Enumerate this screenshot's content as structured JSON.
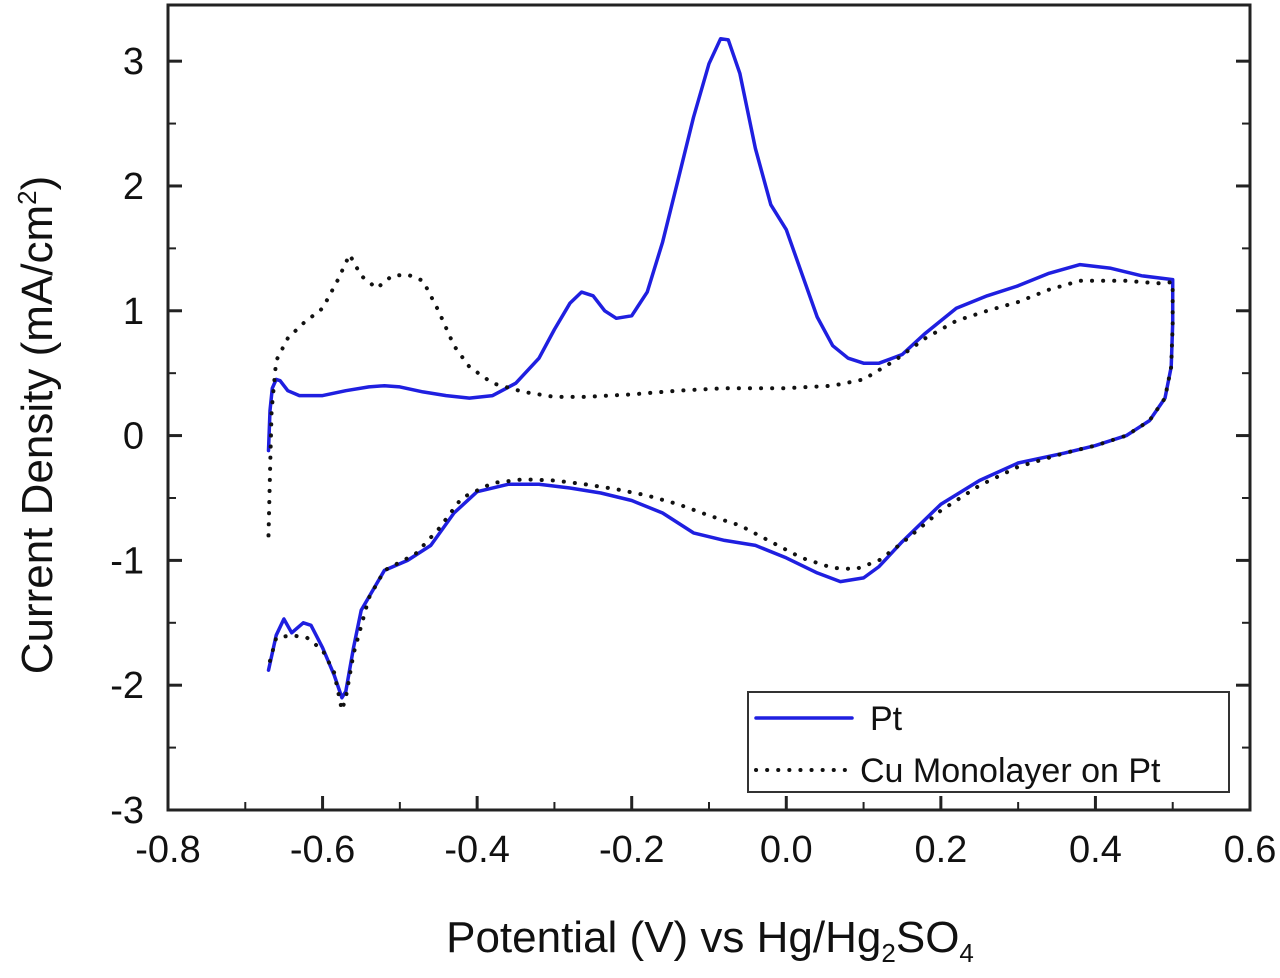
{
  "chart_data": {
    "type": "line",
    "xlabel_parts": {
      "main": "Potential (V) vs Hg/Hg",
      "sub1": "2",
      "mid": "SO",
      "sub2": "4"
    },
    "ylabel_parts": {
      "main": "Current Density (mA/cm",
      "sup": "2",
      "end": ")"
    },
    "xlim": [
      -0.8,
      0.6
    ],
    "ylim": [
      -3,
      3.45
    ],
    "xticks": [
      -0.8,
      -0.6,
      -0.4,
      -0.2,
      0.0,
      0.2,
      0.4,
      0.6
    ],
    "xtick_labels": [
      "-0.8",
      "-0.6",
      "-0.4",
      "-0.2",
      "0.0",
      "0.2",
      "0.4",
      "0.6"
    ],
    "yticks": [
      -3,
      -2,
      -1,
      0,
      1,
      2,
      3
    ],
    "ytick_labels": [
      "-3",
      "-2",
      "-1",
      "0",
      "1",
      "2",
      "3"
    ],
    "grid": false,
    "legend_position": "bottom-right",
    "series": [
      {
        "name": "Pt",
        "color": "#1f1fe0",
        "style": "solid",
        "points": [
          [
            -0.67,
            -0.12
          ],
          [
            -0.668,
            0.2
          ],
          [
            -0.665,
            0.38
          ],
          [
            -0.66,
            0.45
          ],
          [
            -0.655,
            0.44
          ],
          [
            -0.645,
            0.36
          ],
          [
            -0.63,
            0.32
          ],
          [
            -0.6,
            0.32
          ],
          [
            -0.57,
            0.36
          ],
          [
            -0.54,
            0.39
          ],
          [
            -0.52,
            0.4
          ],
          [
            -0.5,
            0.39
          ],
          [
            -0.47,
            0.35
          ],
          [
            -0.44,
            0.32
          ],
          [
            -0.41,
            0.3
          ],
          [
            -0.38,
            0.32
          ],
          [
            -0.35,
            0.42
          ],
          [
            -0.32,
            0.62
          ],
          [
            -0.3,
            0.85
          ],
          [
            -0.28,
            1.06
          ],
          [
            -0.265,
            1.15
          ],
          [
            -0.25,
            1.12
          ],
          [
            -0.235,
            1.0
          ],
          [
            -0.22,
            0.94
          ],
          [
            -0.2,
            0.96
          ],
          [
            -0.18,
            1.15
          ],
          [
            -0.16,
            1.55
          ],
          [
            -0.14,
            2.05
          ],
          [
            -0.12,
            2.55
          ],
          [
            -0.1,
            2.98
          ],
          [
            -0.085,
            3.18
          ],
          [
            -0.075,
            3.17
          ],
          [
            -0.06,
            2.9
          ],
          [
            -0.04,
            2.3
          ],
          [
            -0.02,
            1.85
          ],
          [
            0.0,
            1.65
          ],
          [
            0.02,
            1.3
          ],
          [
            0.04,
            0.95
          ],
          [
            0.06,
            0.72
          ],
          [
            0.08,
            0.62
          ],
          [
            0.1,
            0.58
          ],
          [
            0.12,
            0.58
          ],
          [
            0.15,
            0.65
          ],
          [
            0.18,
            0.82
          ],
          [
            0.22,
            1.02
          ],
          [
            0.26,
            1.12
          ],
          [
            0.3,
            1.2
          ],
          [
            0.34,
            1.3
          ],
          [
            0.38,
            1.37
          ],
          [
            0.42,
            1.34
          ],
          [
            0.46,
            1.28
          ],
          [
            0.5,
            1.25
          ],
          [
            0.5,
            0.9
          ],
          [
            0.498,
            0.55
          ],
          [
            0.49,
            0.3
          ],
          [
            0.47,
            0.12
          ],
          [
            0.44,
            0.0
          ],
          [
            0.4,
            -0.08
          ],
          [
            0.36,
            -0.14
          ],
          [
            0.3,
            -0.22
          ],
          [
            0.25,
            -0.36
          ],
          [
            0.2,
            -0.55
          ],
          [
            0.15,
            -0.85
          ],
          [
            0.12,
            -1.05
          ],
          [
            0.1,
            -1.14
          ],
          [
            0.07,
            -1.17
          ],
          [
            0.04,
            -1.1
          ],
          [
            0.0,
            -0.98
          ],
          [
            -0.04,
            -0.88
          ],
          [
            -0.08,
            -0.84
          ],
          [
            -0.12,
            -0.78
          ],
          [
            -0.16,
            -0.62
          ],
          [
            -0.2,
            -0.52
          ],
          [
            -0.24,
            -0.46
          ],
          [
            -0.28,
            -0.42
          ],
          [
            -0.32,
            -0.39
          ],
          [
            -0.36,
            -0.39
          ],
          [
            -0.4,
            -0.45
          ],
          [
            -0.43,
            -0.62
          ],
          [
            -0.46,
            -0.88
          ],
          [
            -0.49,
            -1.0
          ],
          [
            -0.52,
            -1.08
          ],
          [
            -0.55,
            -1.4
          ],
          [
            -0.56,
            -1.7
          ],
          [
            -0.57,
            -2.05
          ],
          [
            -0.575,
            -2.1
          ],
          [
            -0.585,
            -1.92
          ],
          [
            -0.6,
            -1.7
          ],
          [
            -0.615,
            -1.52
          ],
          [
            -0.625,
            -1.5
          ],
          [
            -0.64,
            -1.58
          ],
          [
            -0.65,
            -1.47
          ],
          [
            -0.66,
            -1.6
          ],
          [
            -0.67,
            -1.88
          ]
        ]
      },
      {
        "name": "Cu Monolayer on Pt",
        "color": "#111111",
        "style": "dotted",
        "points": [
          [
            -0.67,
            -0.8
          ],
          [
            -0.668,
            -0.3
          ],
          [
            -0.666,
            0.2
          ],
          [
            -0.66,
            0.6
          ],
          [
            -0.645,
            0.78
          ],
          [
            -0.625,
            0.9
          ],
          [
            -0.6,
            1.02
          ],
          [
            -0.58,
            1.25
          ],
          [
            -0.565,
            1.45
          ],
          [
            -0.55,
            1.28
          ],
          [
            -0.53,
            1.18
          ],
          [
            -0.51,
            1.28
          ],
          [
            -0.49,
            1.29
          ],
          [
            -0.47,
            1.24
          ],
          [
            -0.45,
            1.0
          ],
          [
            -0.43,
            0.72
          ],
          [
            -0.41,
            0.55
          ],
          [
            -0.38,
            0.42
          ],
          [
            -0.34,
            0.35
          ],
          [
            -0.3,
            0.31
          ],
          [
            -0.26,
            0.31
          ],
          [
            -0.2,
            0.33
          ],
          [
            -0.14,
            0.36
          ],
          [
            -0.08,
            0.38
          ],
          [
            0.0,
            0.38
          ],
          [
            0.06,
            0.4
          ],
          [
            0.1,
            0.45
          ],
          [
            0.14,
            0.6
          ],
          [
            0.18,
            0.78
          ],
          [
            0.22,
            0.92
          ],
          [
            0.26,
            1.0
          ],
          [
            0.3,
            1.07
          ],
          [
            0.34,
            1.17
          ],
          [
            0.38,
            1.24
          ],
          [
            0.44,
            1.24
          ],
          [
            0.48,
            1.22
          ],
          [
            0.5,
            1.23
          ],
          [
            0.5,
            0.9
          ],
          [
            0.498,
            0.55
          ],
          [
            0.49,
            0.3
          ],
          [
            0.47,
            0.12
          ],
          [
            0.44,
            0.0
          ],
          [
            0.4,
            -0.08
          ],
          [
            0.36,
            -0.14
          ],
          [
            0.3,
            -0.25
          ],
          [
            0.25,
            -0.4
          ],
          [
            0.2,
            -0.6
          ],
          [
            0.15,
            -0.86
          ],
          [
            0.12,
            -1.0
          ],
          [
            0.09,
            -1.07
          ],
          [
            0.06,
            -1.06
          ],
          [
            0.02,
            -0.98
          ],
          [
            -0.02,
            -0.85
          ],
          [
            -0.06,
            -0.72
          ],
          [
            -0.1,
            -0.64
          ],
          [
            -0.14,
            -0.55
          ],
          [
            -0.18,
            -0.48
          ],
          [
            -0.22,
            -0.43
          ],
          [
            -0.26,
            -0.39
          ],
          [
            -0.3,
            -0.36
          ],
          [
            -0.34,
            -0.35
          ],
          [
            -0.38,
            -0.38
          ],
          [
            -0.42,
            -0.5
          ],
          [
            -0.45,
            -0.75
          ],
          [
            -0.48,
            -0.95
          ],
          [
            -0.52,
            -1.08
          ],
          [
            -0.54,
            -1.3
          ],
          [
            -0.56,
            -1.75
          ],
          [
            -0.57,
            -2.1
          ],
          [
            -0.575,
            -2.2
          ],
          [
            -0.585,
            -1.9
          ],
          [
            -0.6,
            -1.72
          ],
          [
            -0.62,
            -1.62
          ],
          [
            -0.64,
            -1.6
          ],
          [
            -0.66,
            -1.62
          ],
          [
            -0.67,
            -1.85
          ]
        ]
      }
    ]
  }
}
